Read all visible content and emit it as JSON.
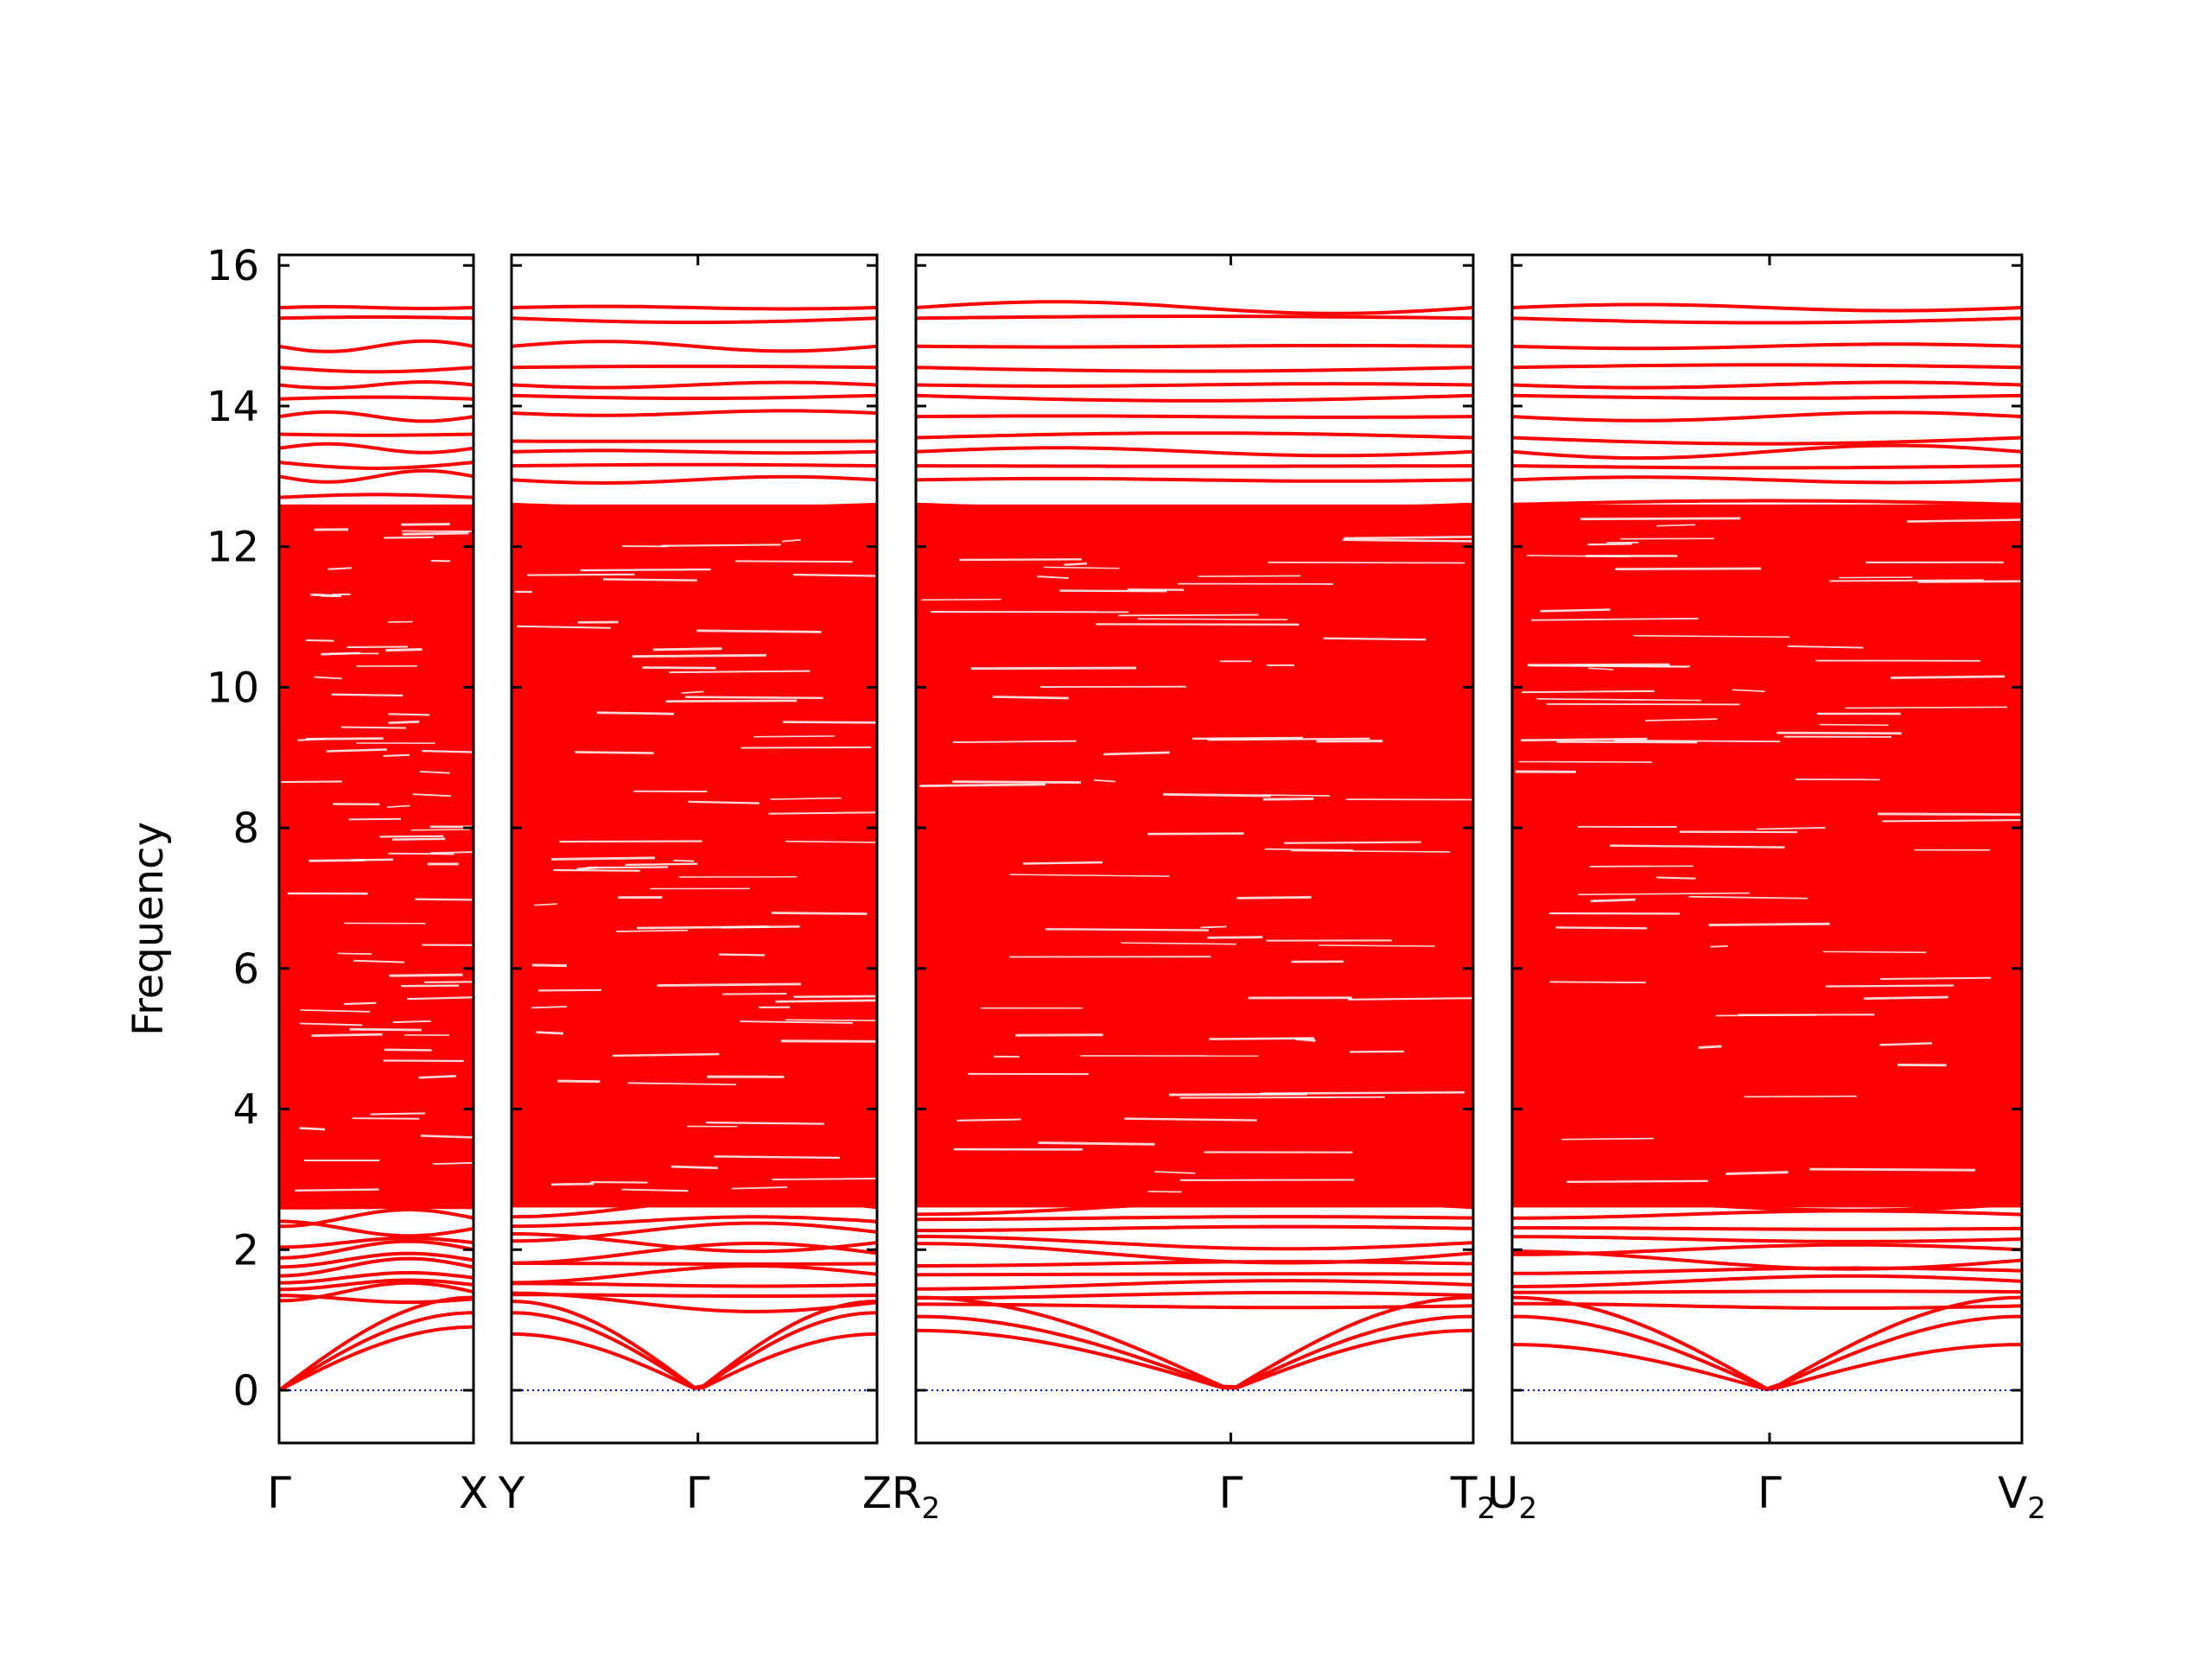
{
  "chart_data": {
    "type": "line",
    "title": "",
    "ylabel": "Frequency",
    "xlabel": "",
    "ylim": [
      -0.75,
      16.15
    ],
    "y_ticks": [
      0,
      2,
      4,
      6,
      8,
      10,
      12,
      14,
      16
    ],
    "y_tick_labels": [
      "0",
      "2",
      "4",
      "6",
      "8",
      "10",
      "12",
      "14",
      "16"
    ],
    "grid": false,
    "legend": "none",
    "colors": {
      "bands": "#ff0000",
      "zero_line": "#0000cc",
      "axes": "#000000"
    },
    "segments": [
      {
        "name": "Γ–X",
        "points": [
          {
            "label": "Γ",
            "sub": ""
          },
          {
            "label": "X",
            "sub": ""
          }
        ],
        "ticks_at": [
          0,
          1
        ],
        "acoustic_gamma_position": 0,
        "acoustic_end_values": [
          0.9,
          1.05,
          1.2
        ],
        "low_optical": [
          1.3,
          1.4,
          1.5,
          1.6,
          1.75,
          1.85,
          2.0,
          2.1,
          2.3,
          2.45,
          2.6
        ],
        "high_optical": [
          12.7,
          13.0,
          13.2,
          13.4,
          13.6,
          13.85,
          14.1,
          14.3,
          14.55,
          14.85,
          15.25,
          15.4
        ]
      },
      {
        "name": "Y–Γ–Z",
        "points": [
          {
            "label": "Y",
            "sub": ""
          },
          {
            "label": "Γ",
            "sub": ""
          },
          {
            "label": "Z",
            "sub": ""
          }
        ],
        "ticks_at": [
          0,
          0.51,
          1
        ],
        "acoustic_gamma_position": 0.51,
        "acoustic_end_values": [
          0.8,
          1.05,
          1.15
        ],
        "low_optical": [
          1.25,
          1.35,
          1.5,
          1.65,
          1.8,
          1.95,
          2.1,
          2.25,
          2.4,
          2.6
        ],
        "high_optical": [
          12.6,
          12.95,
          13.15,
          13.35,
          13.5,
          13.9,
          14.15,
          14.3,
          14.55,
          14.85,
          15.25,
          15.4
        ]
      },
      {
        "name": "R2–Γ–T2",
        "points": [
          {
            "label": "R",
            "sub": "2"
          },
          {
            "label": "Γ",
            "sub": ""
          },
          {
            "label": "T",
            "sub": "2"
          }
        ],
        "ticks_at": [
          0,
          0.565,
          1
        ],
        "acoustic_gamma_position": 0.565,
        "acoustic_end_values": [
          0.85,
          1.0,
          1.2
        ],
        "low_optical": [
          1.2,
          1.35,
          1.5,
          1.65,
          1.8,
          1.95,
          2.1,
          2.3,
          2.45,
          2.6
        ],
        "high_optical": [
          12.6,
          12.95,
          13.15,
          13.35,
          13.55,
          13.85,
          14.15,
          14.3,
          14.55,
          14.85,
          15.25,
          15.4
        ]
      },
      {
        "name": "U2–Γ–V2",
        "points": [
          {
            "label": "U",
            "sub": "2"
          },
          {
            "label": "Γ",
            "sub": ""
          },
          {
            "label": "V",
            "sub": "2"
          }
        ],
        "ticks_at": [
          0,
          0.505,
          1
        ],
        "acoustic_gamma_position": 0.505,
        "acoustic_end_values": [
          0.65,
          1.0,
          1.2
        ],
        "low_optical": [
          1.2,
          1.4,
          1.55,
          1.7,
          1.85,
          2.0,
          2.15,
          2.3,
          2.5,
          2.65
        ],
        "high_optical": [
          12.6,
          12.95,
          13.15,
          13.35,
          13.55,
          13.85,
          14.15,
          14.3,
          14.55,
          14.85,
          15.25,
          15.4
        ]
      }
    ],
    "dense_band_region": [
      2.6,
      12.6
    ],
    "zero_reference_line": 0
  }
}
